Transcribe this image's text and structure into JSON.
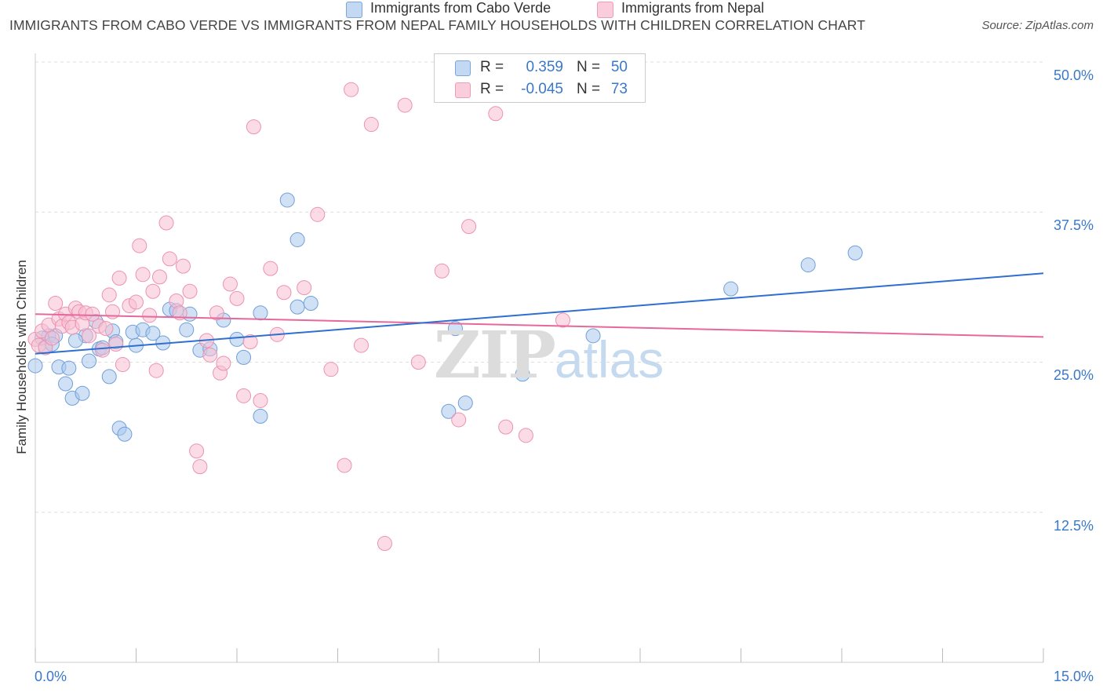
{
  "title": "IMMIGRANTS FROM CABO VERDE VS IMMIGRANTS FROM NEPAL FAMILY HOUSEHOLDS WITH CHILDREN CORRELATION CHART",
  "source": "Source: ZipAtlas.com",
  "watermark": {
    "zip": "ZIP",
    "atlas": "atlas"
  },
  "legend_top": [
    {
      "r_label": "R =",
      "r_value": "0.359",
      "n_label": "N =",
      "n_value": "50"
    },
    {
      "r_label": "R =",
      "r_value": "-0.045",
      "n_label": "N =",
      "n_value": "73"
    }
  ],
  "legend_bottom": [
    {
      "label": "Immigrants from Cabo Verde"
    },
    {
      "label": "Immigrants from Nepal"
    }
  ],
  "colors": {
    "blue_fill": "#a9c8ee",
    "blue_stroke": "#6f9fd8",
    "blue_line": "#2e6fcf",
    "pink_fill": "#f7bfd1",
    "pink_stroke": "#ec92b0",
    "pink_line": "#e7689a",
    "tick_text": "#3a78c9",
    "grid": "#dddddd"
  },
  "chart_data": {
    "type": "scatter",
    "title": "IMMIGRANTS FROM CABO VERDE VS IMMIGRANTS FROM NEPAL FAMILY HOUSEHOLDS WITH CHILDREN CORRELATION CHART",
    "xlabel": "",
    "ylabel": "Family Households with Children",
    "xlim": [
      0,
      15
    ],
    "ylim": [
      0,
      50
    ],
    "x_tick_labels": [
      "0.0%",
      "15.0%"
    ],
    "y_ticks": [
      12.5,
      25.0,
      37.5,
      50.0
    ],
    "y_tick_labels": [
      "12.5%",
      "25.0%",
      "37.5%",
      "50.0%"
    ],
    "grid": true,
    "legend_position": "top-center",
    "series": [
      {
        "name": "Immigrants from Cabo Verde",
        "color": "blue",
        "trend": {
          "x0": 0,
          "y0": 25.7,
          "x1": 15,
          "y1": 32.4
        },
        "points": [
          [
            0.0,
            24.7
          ],
          [
            0.15,
            26.3
          ],
          [
            0.2,
            27.2
          ],
          [
            0.3,
            27.2
          ],
          [
            0.35,
            24.6
          ],
          [
            0.45,
            23.2
          ],
          [
            0.5,
            24.5
          ],
          [
            0.55,
            22.0
          ],
          [
            0.7,
            22.4
          ],
          [
            0.75,
            27.2
          ],
          [
            0.8,
            25.1
          ],
          [
            0.9,
            28.4
          ],
          [
            0.95,
            26.1
          ],
          [
            1.1,
            23.8
          ],
          [
            1.15,
            27.6
          ],
          [
            1.2,
            26.7
          ],
          [
            1.25,
            19.5
          ],
          [
            1.33,
            19.0
          ],
          [
            1.45,
            27.5
          ],
          [
            1.5,
            26.4
          ],
          [
            1.6,
            27.7
          ],
          [
            1.75,
            27.4
          ],
          [
            1.9,
            26.6
          ],
          [
            2.0,
            29.4
          ],
          [
            2.1,
            29.3
          ],
          [
            2.25,
            27.7
          ],
          [
            2.3,
            29.0
          ],
          [
            2.45,
            26.0
          ],
          [
            2.6,
            26.1
          ],
          [
            2.8,
            28.5
          ],
          [
            3.0,
            26.9
          ],
          [
            3.1,
            25.4
          ],
          [
            3.35,
            29.1
          ],
          [
            3.35,
            20.5
          ],
          [
            3.75,
            38.5
          ],
          [
            3.9,
            35.2
          ],
          [
            3.9,
            29.6
          ],
          [
            4.1,
            29.9
          ],
          [
            6.15,
            20.9
          ],
          [
            6.25,
            27.8
          ],
          [
            6.4,
            21.6
          ],
          [
            7.25,
            24.0
          ],
          [
            8.3,
            27.2
          ],
          [
            10.35,
            31.1
          ],
          [
            11.5,
            33.1
          ],
          [
            12.2,
            34.1
          ],
          [
            0.1,
            27.0
          ],
          [
            0.25,
            26.5
          ],
          [
            0.6,
            26.8
          ],
          [
            1.0,
            26.2
          ]
        ]
      },
      {
        "name": "Immigrants from Nepal",
        "color": "pink",
        "trend": {
          "x0": 0,
          "y0": 29.0,
          "x1": 15,
          "y1": 27.1
        },
        "points": [
          [
            0.0,
            26.9
          ],
          [
            0.05,
            26.4
          ],
          [
            0.1,
            27.6
          ],
          [
            0.15,
            26.2
          ],
          [
            0.2,
            28.1
          ],
          [
            0.25,
            27.0
          ],
          [
            0.3,
            29.9
          ],
          [
            0.35,
            28.6
          ],
          [
            0.4,
            28.0
          ],
          [
            0.45,
            29.0
          ],
          [
            0.5,
            28.3
          ],
          [
            0.55,
            27.9
          ],
          [
            0.6,
            29.5
          ],
          [
            0.65,
            29.2
          ],
          [
            0.7,
            28.2
          ],
          [
            0.75,
            29.1
          ],
          [
            0.8,
            27.2
          ],
          [
            0.85,
            29.0
          ],
          [
            0.95,
            28.0
          ],
          [
            1.0,
            26.0
          ],
          [
            1.05,
            27.8
          ],
          [
            1.1,
            30.6
          ],
          [
            1.15,
            29.2
          ],
          [
            1.2,
            26.5
          ],
          [
            1.25,
            32.0
          ],
          [
            1.3,
            24.8
          ],
          [
            1.4,
            29.7
          ],
          [
            1.5,
            30.0
          ],
          [
            1.55,
            34.7
          ],
          [
            1.6,
            32.3
          ],
          [
            1.7,
            28.9
          ],
          [
            1.75,
            30.9
          ],
          [
            1.8,
            24.3
          ],
          [
            1.85,
            32.1
          ],
          [
            1.95,
            36.6
          ],
          [
            2.0,
            33.6
          ],
          [
            2.1,
            30.1
          ],
          [
            2.15,
            29.1
          ],
          [
            2.2,
            33.0
          ],
          [
            2.3,
            30.9
          ],
          [
            2.4,
            17.6
          ],
          [
            2.45,
            16.3
          ],
          [
            2.55,
            26.8
          ],
          [
            2.6,
            25.6
          ],
          [
            2.7,
            29.1
          ],
          [
            2.75,
            24.1
          ],
          [
            2.8,
            24.9
          ],
          [
            2.9,
            31.5
          ],
          [
            3.0,
            30.3
          ],
          [
            3.1,
            22.2
          ],
          [
            3.2,
            26.7
          ],
          [
            3.25,
            44.6
          ],
          [
            3.35,
            21.8
          ],
          [
            3.5,
            32.8
          ],
          [
            3.6,
            27.3
          ],
          [
            3.7,
            30.8
          ],
          [
            4.0,
            31.2
          ],
          [
            4.2,
            37.3
          ],
          [
            4.4,
            24.4
          ],
          [
            4.6,
            16.4
          ],
          [
            4.7,
            47.7
          ],
          [
            4.85,
            26.4
          ],
          [
            5.0,
            44.8
          ],
          [
            5.2,
            9.9
          ],
          [
            5.5,
            46.4
          ],
          [
            5.7,
            25.0
          ],
          [
            6.05,
            32.6
          ],
          [
            6.3,
            20.2
          ],
          [
            6.45,
            36.3
          ],
          [
            6.85,
            45.7
          ],
          [
            7.0,
            19.6
          ],
          [
            7.3,
            18.9
          ],
          [
            7.85,
            28.5
          ]
        ]
      }
    ]
  }
}
